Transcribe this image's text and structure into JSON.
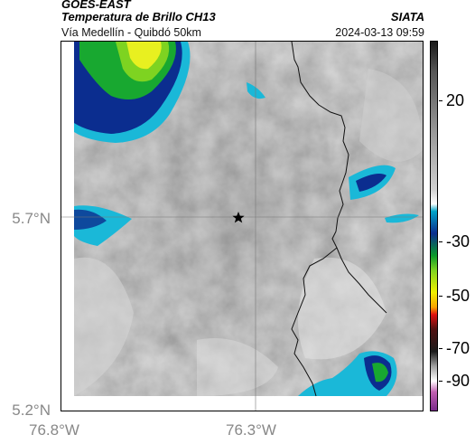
{
  "header": {
    "satellite": "GOES-EAST",
    "product": "Temperatura de Brillo CH13",
    "route": "Vía Medellín - Quibdó 50km",
    "organization": "SIATA",
    "datetime": "2024-03-13 09:59"
  },
  "axes": {
    "lat_labels": [
      "5.7°N",
      "5.2°N"
    ],
    "lon_labels": [
      "76.8°W",
      "76.3°W"
    ]
  },
  "colorbar": {
    "tick_labels": [
      "20",
      "-30",
      "-50",
      "-70",
      "-90"
    ],
    "stops": [
      "#1a1a1a",
      "#555555",
      "#9a9a9a",
      "#cfcfcf",
      "#ffffff",
      "#00a5c8",
      "#0b2d8f",
      "#0a9a2a",
      "#7ed321",
      "#f0f000",
      "#f7a300",
      "#e01010",
      "#501010",
      "#1a1a1a",
      "#a0a0a0",
      "#ffffff",
      "#c060b0",
      "#7a2a8a"
    ]
  },
  "map": {
    "marker": "star-icon",
    "colors": {
      "cold_blue": "#0b2d8f",
      "cyan": "#1ab8d8",
      "green": "#18a830",
      "yellow": "#e8f020",
      "border": "#111111",
      "grid": "#777777"
    }
  }
}
